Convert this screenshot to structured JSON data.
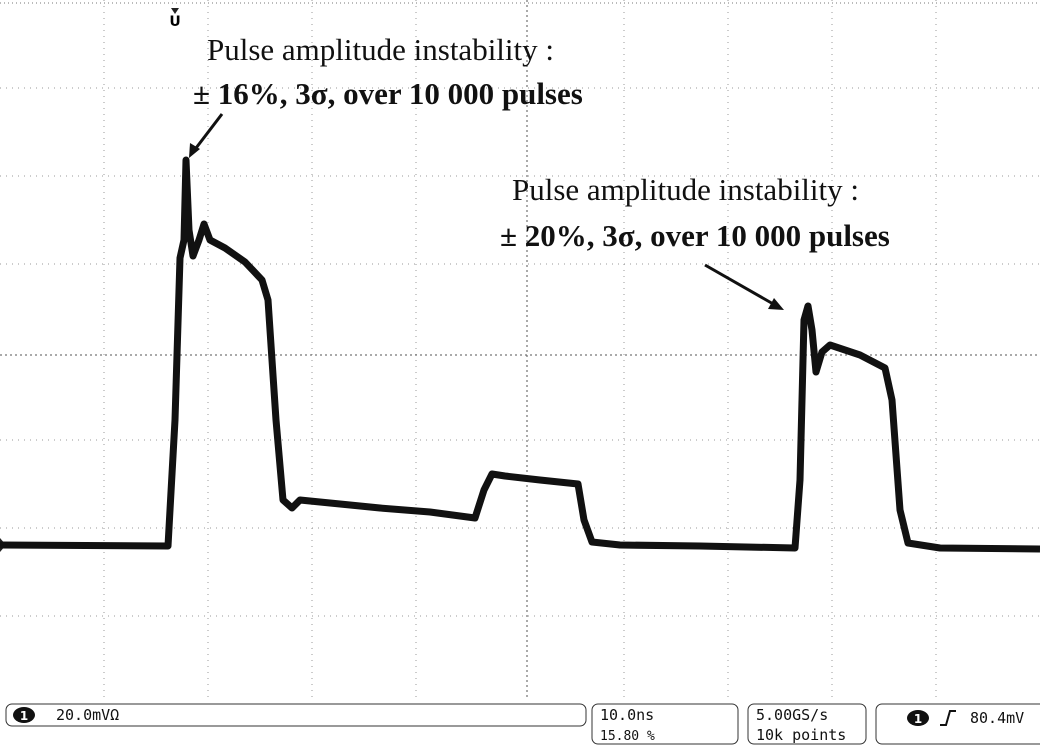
{
  "annotations": [
    {
      "title": "Pulse amplitude instability :",
      "detail": "± 16%, 3σ, over 10 000 pulses"
    },
    {
      "title": "Pulse amplitude instability :",
      "detail": "± 20%, 3σ, over 10 000 pulses"
    }
  ],
  "trigger_marker": "U",
  "status_bar": {
    "channel": "1",
    "scale": "20.0mVΩ",
    "timebase": "10.0ns",
    "position": "15.80 %",
    "sample_rate": "5.00GS/s",
    "record_length": "10k points",
    "trigger_channel": "1",
    "trigger_level": "80.4mV"
  }
}
